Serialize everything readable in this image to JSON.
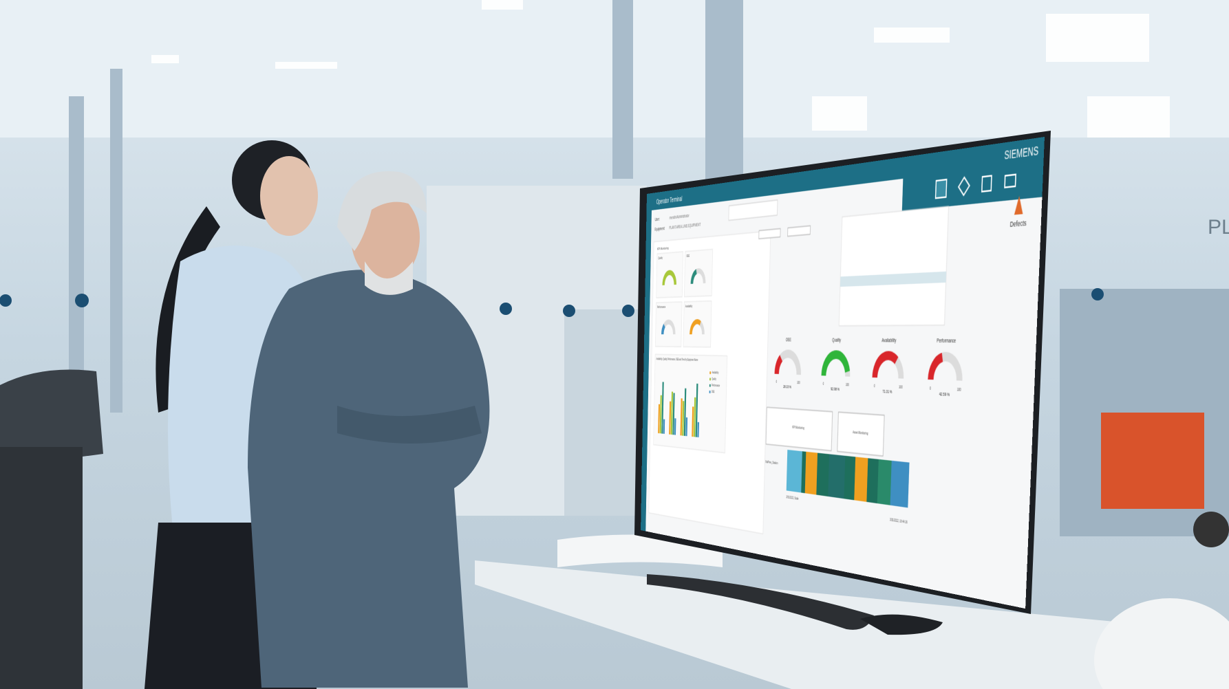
{
  "wall_text": "PL",
  "screen": {
    "brand": "SIEMENS",
    "app_title": "Operator Terminal",
    "user_label": "User:",
    "user_value": "mendix\\Administrator",
    "equipment_label": "Equipment:",
    "equipment_value": "PLANT.AREA.LINE.EQUIPMENT",
    "tab": "KPI Monitoring",
    "defects": "Defects",
    "small_gauges": [
      "Quality",
      "OEE",
      "Performance",
      "Availability"
    ],
    "chart_title": "Availability, Quality, Performance, OEE and Trend by Equipment Name",
    "legend": [
      "Availability",
      "Quality",
      "Performance",
      "OEE"
    ],
    "gauges": {
      "range": [
        0,
        100
      ],
      "items": [
        {
          "name": "OEE",
          "value": 28.33,
          "label": "28.33 %",
          "color": "#d9262b"
        },
        {
          "name": "Quality",
          "value": 92.98,
          "label": "92.98 %",
          "color": "#2fb53a"
        },
        {
          "name": "Availability",
          "value": 71.31,
          "label": "71.31 %",
          "color": "#d9262b"
        },
        {
          "name": "Performance",
          "value": 42.59,
          "label": "42.59 %",
          "color": "#d9262b"
        }
      ]
    },
    "buttons": [
      "KPI Monitoring",
      "Asset Monitoring"
    ],
    "timeline_label": "NaPres_Station",
    "timeline_start": "3/31/2022, Scale",
    "timeline_end": "3/31/2022, 16:44:16"
  }
}
